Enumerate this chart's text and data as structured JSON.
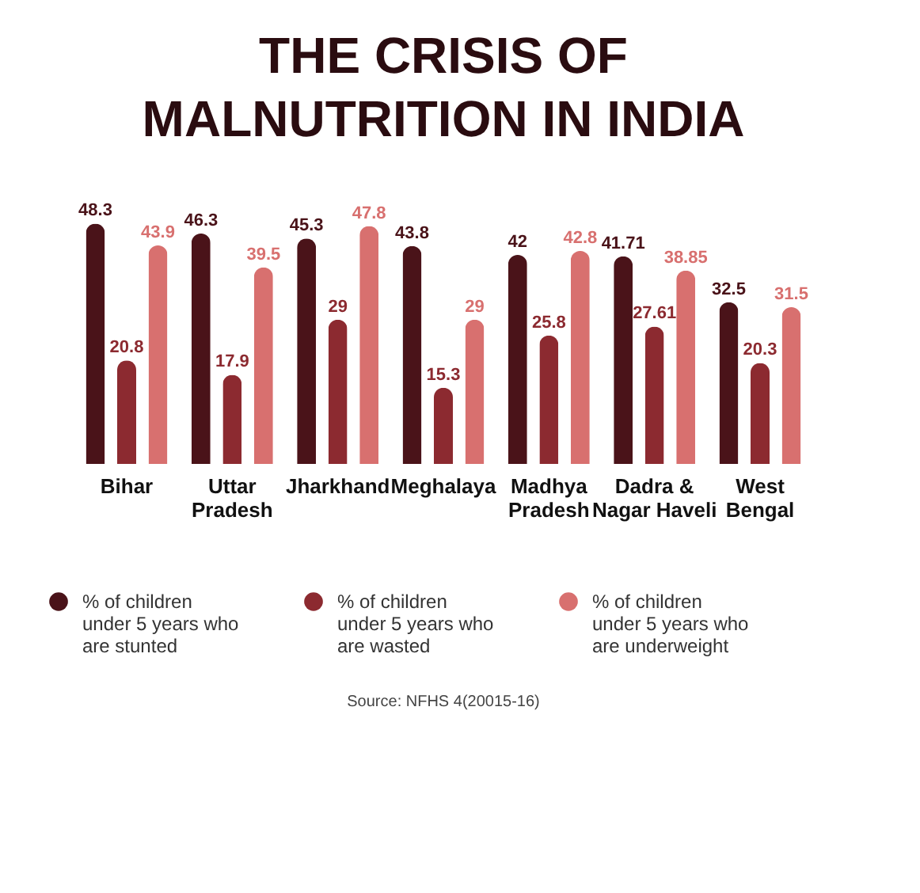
{
  "chart_data": {
    "type": "bar",
    "title": "THE CRISIS OF MALNUTRITION IN INDIA",
    "categories": [
      "Bihar",
      "Uttar Pradesh",
      "Jharkhand",
      "Meghalaya",
      "Madhya Pradesh",
      "Dadra & Nagar Haveli",
      "West Bengal"
    ],
    "series": [
      {
        "name": "% of children under 5 years who are stunted",
        "color": "#4a1319",
        "values": [
          48.3,
          46.3,
          45.3,
          43.8,
          42,
          41.71,
          32.5
        ]
      },
      {
        "name": "% of children under 5 years who are wasted",
        "color": "#8c2a30",
        "values": [
          20.8,
          17.9,
          29,
          15.3,
          25.8,
          27.61,
          20.3
        ]
      },
      {
        "name": "% of children under 5 years who are underweight",
        "color": "#d8706f",
        "values": [
          43.9,
          39.5,
          47.8,
          29,
          42.8,
          38.85,
          31.5
        ]
      }
    ],
    "data_labels": true,
    "legend": "bottom",
    "annotations": [
      "Source: NFHS 4(20015-16)"
    ]
  }
}
